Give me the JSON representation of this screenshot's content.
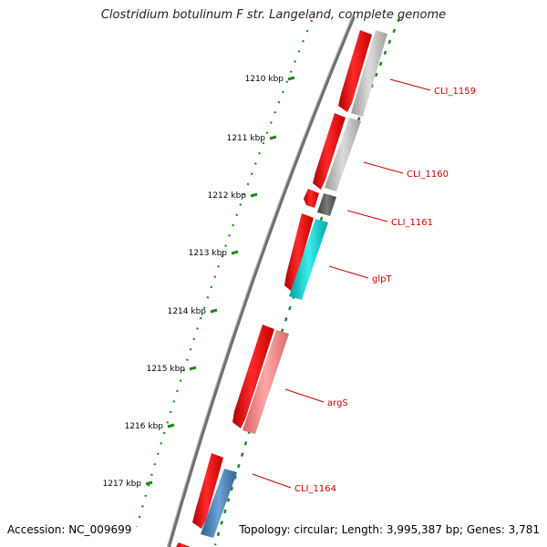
{
  "title": "Clostridium botulinum F str. Langeland, complete genome",
  "footer": {
    "accession": "Accession: NC_009699",
    "summary": "Topology: circular; Length: 3,995,387 bp; Genes: 3,781"
  },
  "ticks": [
    {
      "label": "1210 kbp"
    },
    {
      "label": "1211 kbp"
    },
    {
      "label": "1212 kbp"
    },
    {
      "label": "1213 kbp"
    },
    {
      "label": "1214 kbp"
    },
    {
      "label": "1215 kbp"
    },
    {
      "label": "1216 kbp"
    },
    {
      "label": "1217 kbp"
    }
  ],
  "genes": [
    {
      "label": "CLI_1159",
      "color": "#c0c0c0"
    },
    {
      "label": "CLI_1160",
      "color": "#c0c0c0"
    },
    {
      "label": "CLI_1161",
      "color": "#606060"
    },
    {
      "label": "glpT",
      "color": "#00c8c8"
    },
    {
      "label": "argS",
      "color": "#f08080"
    },
    {
      "label": "CLI_1164",
      "color": "#4a7fb5"
    }
  ],
  "colors": {
    "cds": "#ff0000",
    "backbone": "#7a7a7a",
    "tick": "#1a8a1a",
    "gene_label": "#cc0000"
  }
}
